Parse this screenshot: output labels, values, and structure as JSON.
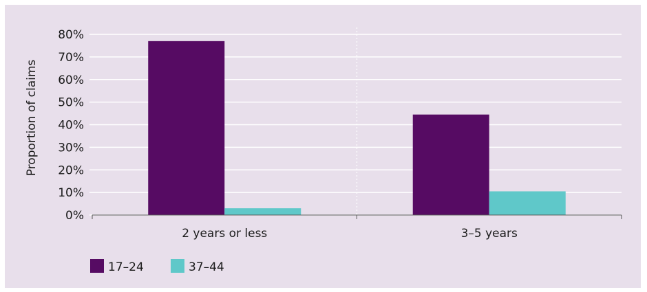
{
  "chart_data": {
    "type": "bar",
    "title": "",
    "xlabel": "",
    "ylabel": "Proportion of claims",
    "categories": [
      "2 years or less",
      "3–5 years"
    ],
    "series": [
      {
        "name": "17–24",
        "values": [
          77,
          44.5
        ],
        "color": "#560b63"
      },
      {
        "name": "37–44",
        "values": [
          3,
          10.5
        ],
        "color": "#5fc8c9"
      }
    ],
    "ylim": [
      0,
      80
    ],
    "yticks": [
      0,
      10,
      20,
      30,
      40,
      50,
      60,
      70,
      80
    ],
    "ytick_labels": [
      "0%",
      "10%",
      "20%",
      "30%",
      "40%",
      "50%",
      "60%",
      "70%",
      "80%"
    ],
    "grid": true,
    "legend_position": "bottom-left"
  }
}
